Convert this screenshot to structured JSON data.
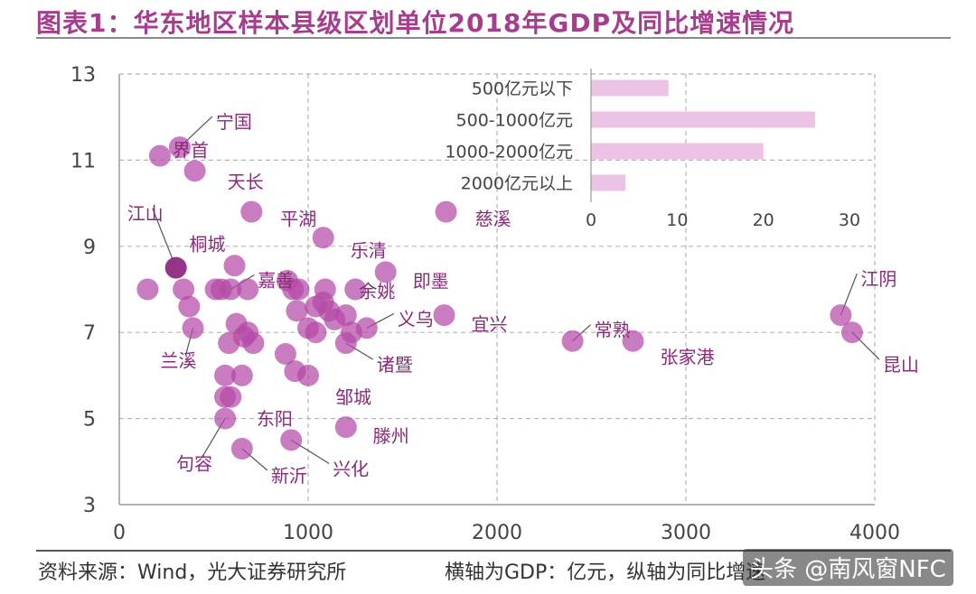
{
  "title": "图表1：华东地区样本县级区划单位2018年GDP及同比增速情况",
  "footer": {
    "source": "资料来源：Wind，光大证券研究所",
    "axis_note": "横轴为GDP：亿元，纵轴为同比增速",
    "watermark": "头条 @南风窗NFC"
  },
  "colors": {
    "point": "#b44aa6",
    "bar": "#ecc3e4",
    "label": "#8b2a7c",
    "title": "#a63d8e"
  },
  "chart_data": [
    {
      "type": "scatter",
      "title": "",
      "xlabel": "GDP：亿元",
      "ylabel": "同比增速",
      "xlim": [
        0,
        4000
      ],
      "ylim": [
        3,
        13
      ],
      "xticks": [
        0,
        1000,
        2000,
        3000,
        4000
      ],
      "yticks": [
        3,
        5,
        7,
        9,
        11,
        13
      ],
      "grid": true,
      "points": [
        {
          "x": 320,
          "y": 11.3,
          "label": "宁国"
        },
        {
          "x": 215,
          "y": 11.1,
          "label": "界首"
        },
        {
          "x": 400,
          "y": 10.75,
          "label": "天长"
        },
        {
          "x": 700,
          "y": 9.8,
          "label": "平湖"
        },
        {
          "x": 1730,
          "y": 9.8,
          "label": "慈溪"
        },
        {
          "x": 1080,
          "y": 9.2,
          "label": "乐清"
        },
        {
          "x": 610,
          "y": 8.55,
          "label": "桐城"
        },
        {
          "x": 300,
          "y": 8.5,
          "label": "江山"
        },
        {
          "x": 1410,
          "y": 8.4,
          "label": "即墨"
        },
        {
          "x": 590,
          "y": 8.0,
          "label": "嘉善"
        },
        {
          "x": 1250,
          "y": 8.0,
          "label": "余姚"
        },
        {
          "x": 1720,
          "y": 7.4,
          "label": "宜兴"
        },
        {
          "x": 1310,
          "y": 7.1,
          "label": "义乌"
        },
        {
          "x": 1200,
          "y": 6.75,
          "label": "诸暨"
        },
        {
          "x": 3820,
          "y": 7.4,
          "label": "江阴"
        },
        {
          "x": 3880,
          "y": 7.0,
          "label": "昆山"
        },
        {
          "x": 2400,
          "y": 6.8,
          "label": "常熟"
        },
        {
          "x": 2720,
          "y": 6.8,
          "label": "张家港"
        },
        {
          "x": 390,
          "y": 7.1,
          "label": "兰溪"
        },
        {
          "x": 650,
          "y": 6.0,
          "label": "东阳"
        },
        {
          "x": 1000,
          "y": 6.0,
          "label": "邹城"
        },
        {
          "x": 560,
          "y": 5.0,
          "label": "句容"
        },
        {
          "x": 1200,
          "y": 4.8,
          "label": "滕州"
        },
        {
          "x": 650,
          "y": 4.3,
          "label": "新沂"
        },
        {
          "x": 910,
          "y": 4.5,
          "label": "兴化"
        },
        {
          "x": 150,
          "y": 8.0,
          "label": ""
        },
        {
          "x": 340,
          "y": 8.0,
          "label": ""
        },
        {
          "x": 370,
          "y": 7.6,
          "label": ""
        },
        {
          "x": 510,
          "y": 8.0,
          "label": ""
        },
        {
          "x": 540,
          "y": 8.0,
          "label": ""
        },
        {
          "x": 680,
          "y": 8.0,
          "label": ""
        },
        {
          "x": 620,
          "y": 7.2,
          "label": ""
        },
        {
          "x": 680,
          "y": 7.0,
          "label": ""
        },
        {
          "x": 660,
          "y": 6.9,
          "label": ""
        },
        {
          "x": 710,
          "y": 6.75,
          "label": ""
        },
        {
          "x": 580,
          "y": 6.75,
          "label": ""
        },
        {
          "x": 560,
          "y": 6.0,
          "label": ""
        },
        {
          "x": 560,
          "y": 5.5,
          "label": ""
        },
        {
          "x": 590,
          "y": 5.5,
          "label": ""
        },
        {
          "x": 880,
          "y": 6.5,
          "label": ""
        },
        {
          "x": 930,
          "y": 6.1,
          "label": ""
        },
        {
          "x": 890,
          "y": 8.2,
          "label": ""
        },
        {
          "x": 920,
          "y": 8.0,
          "label": ""
        },
        {
          "x": 950,
          "y": 8.0,
          "label": ""
        },
        {
          "x": 940,
          "y": 7.5,
          "label": ""
        },
        {
          "x": 1040,
          "y": 7.6,
          "label": ""
        },
        {
          "x": 1080,
          "y": 7.7,
          "label": ""
        },
        {
          "x": 1090,
          "y": 8.0,
          "label": ""
        },
        {
          "x": 1110,
          "y": 7.5,
          "label": ""
        },
        {
          "x": 1140,
          "y": 7.3,
          "label": ""
        },
        {
          "x": 1000,
          "y": 7.1,
          "label": ""
        },
        {
          "x": 1040,
          "y": 7.0,
          "label": ""
        },
        {
          "x": 1200,
          "y": 7.4,
          "label": ""
        },
        {
          "x": 1230,
          "y": 7.0,
          "label": ""
        }
      ]
    },
    {
      "type": "bar",
      "orientation": "horizontal",
      "categories": [
        "500亿元以下",
        "500-1000亿元",
        "1000-2000亿元",
        "2000亿元以上"
      ],
      "values": [
        9,
        26,
        20,
        4
      ],
      "xlim": [
        0,
        30
      ],
      "xticks": [
        0,
        10,
        20,
        30
      ]
    }
  ]
}
